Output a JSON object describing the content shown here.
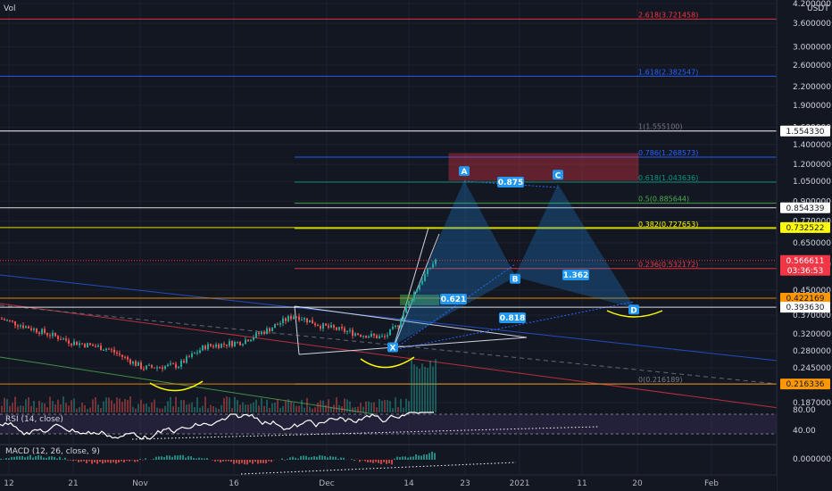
{
  "header": {
    "volume_label": "Vol",
    "currency": "USDT"
  },
  "price_axis": {
    "ticks": [
      "4.200000",
      "3.600000",
      "3.000000",
      "2.600000",
      "2.200000",
      "1.900000",
      "1.600000",
      "1.400000",
      "1.200000",
      "1.050000",
      "0.900000",
      "0.770000",
      "0.650000",
      "0.550000",
      "0.450000",
      "0.370000",
      "0.320000",
      "0.280000",
      "0.245000",
      "0.187000"
    ],
    "tags": [
      {
        "label": "1.554330",
        "bg": "#ffffff",
        "fg": "#131722"
      },
      {
        "label": "0.854339",
        "bg": "#ffffff",
        "fg": "#131722"
      },
      {
        "label": "0.732522",
        "bg": "#ffff00",
        "fg": "#131722"
      },
      {
        "label": "0.566611",
        "bg": "#f23645",
        "fg": "#ffffff"
      },
      {
        "label": "03:36:53",
        "bg": "#f23645",
        "fg": "#ffffff"
      },
      {
        "label": "0.422169",
        "bg": "#ff9800",
        "fg": "#131722"
      },
      {
        "label": "0.393630",
        "bg": "#ffffff",
        "fg": "#131722"
      },
      {
        "label": "0.216336",
        "bg": "#ff9800",
        "fg": "#131722"
      }
    ]
  },
  "time_axis": {
    "labels": [
      "12",
      "21",
      "Nov",
      "16",
      "Dec",
      "14",
      "23",
      "2021",
      "11",
      "20",
      "Feb"
    ]
  },
  "fib_levels": [
    {
      "label": "2.618(3.721458)",
      "color": "#f23645",
      "price": 3.721458
    },
    {
      "label": "1.618(2.382547)",
      "color": "#2962ff",
      "price": 2.382547
    },
    {
      "label": "1(1.555100)",
      "color": "#787b86",
      "price": 1.5551
    },
    {
      "label": "0.786(1.268573)",
      "color": "#2962ff",
      "price": 1.268573
    },
    {
      "label": "0.618(1.043636)",
      "color": "#089981",
      "price": 1.043636
    },
    {
      "label": "0.5(0.885644)",
      "color": "#4caf50",
      "price": 0.885644
    },
    {
      "label": "0.382(0.727653)",
      "color": "#ffff00",
      "price": 0.727653
    },
    {
      "label": "0.236(0.532172)",
      "color": "#f23645",
      "price": 0.532172
    },
    {
      "label": "0(0.216189)",
      "color": "#787b86",
      "price": 0.216189
    }
  ],
  "chart_data": {
    "type": "candlestick",
    "symbol_unit": "USDT",
    "y_scale": "log",
    "price_range": [
      0.17,
      4.4
    ],
    "pattern_points": [
      {
        "label": "X",
        "price": 0.293
      },
      {
        "label": "A",
        "price": 1.05
      },
      {
        "label": "B",
        "price": 0.5
      },
      {
        "label": "C",
        "price": 1.02
      },
      {
        "label": "D",
        "price": 0.393
      }
    ],
    "ratios": [
      "0.875",
      "0.621",
      "1.362",
      "0.818"
    ],
    "indicators": [
      {
        "name": "RSI (14, close)",
        "ticks": [
          "80.00",
          "40.00"
        ]
      },
      {
        "name": "MACD (12, 26, close, 9)",
        "ticks": [
          "0.000000"
        ]
      }
    ]
  }
}
